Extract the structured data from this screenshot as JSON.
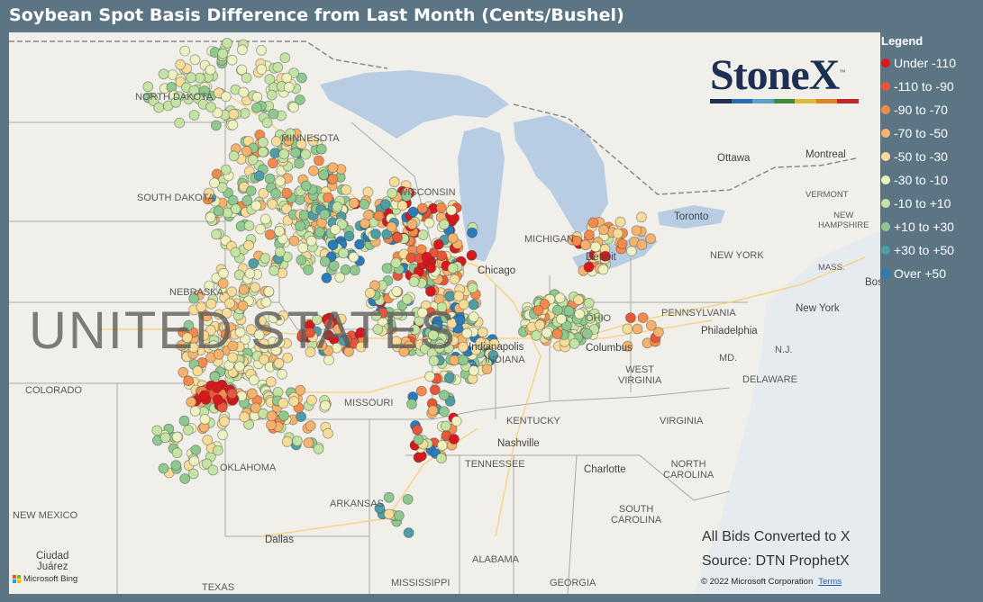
{
  "title": "Soybean Spot Basis Difference from Last Month (Cents/Bushel)",
  "legend": {
    "title": "Legend",
    "items": [
      {
        "label": "Under -110",
        "color": "#d7191c"
      },
      {
        "label": "-110 to -90",
        "color": "#e8563a"
      },
      {
        "label": "-90 to -70",
        "color": "#f28b4c"
      },
      {
        "label": "-70 to -50",
        "color": "#f5b36e"
      },
      {
        "label": "-50 to -30",
        "color": "#f7dc9a"
      },
      {
        "label": "-30 to -10",
        "color": "#eef2c0"
      },
      {
        "label": "-10 to +10",
        "color": "#c5e3a3"
      },
      {
        "label": "+10 to +30",
        "color": "#8fc98f"
      },
      {
        "label": "+30 to +50",
        "color": "#4f9ea5"
      },
      {
        "label": "Over +50",
        "color": "#2b7bb9"
      }
    ]
  },
  "logo": {
    "text": "StoneX",
    "tm": "™",
    "bar_colors": [
      "#1d2f55",
      "#2b6cb0",
      "#5aa0c8",
      "#3c8a3c",
      "#e2b83a",
      "#e0822a",
      "#c0272d"
    ]
  },
  "notes": {
    "line1": "All Bids Converted to X",
    "line2": "Source: DTN ProphetX"
  },
  "copyright": "© 2022 Microsoft Corporation",
  "terms_link": "Terms",
  "bing": "Microsoft Bing",
  "map_labels": {
    "north_dakota": "NORTH DAKOTA",
    "south_dakota": "SOUTH DAKOTA",
    "minnesota": "MINNESOTA",
    "wisconsin": "WISCONSIN",
    "nebraska": "NEBRASKA",
    "colorado": "COLORADO",
    "missouri": "MISSOURI",
    "michigan": "MICHIGAN",
    "ohio": "OHIO",
    "indiana": "INDIANA",
    "kentucky": "KENTUCKY",
    "tennessee": "TENNESSEE",
    "arkansas": "ARKANSAS",
    "oklahoma": "OKLAHOMA",
    "new_mexico": "NEW MEXICO",
    "texas": "TEXAS",
    "mississippi": "MISSISSIPPI",
    "alabama": "ALABAMA",
    "georgia": "GEORGIA",
    "west_virginia": "WEST\nVIRGINIA",
    "virginia": "VIRGINIA",
    "north_carolina": "NORTH\nCAROLINA",
    "south_carolina": "SOUTH\nCAROLINA",
    "pennsylvania": "PENNSYLVANIA",
    "new_york": "NEW YORK",
    "vermont": "VERMONT",
    "new_hampshire": "NEW\nHAMPSHIRE",
    "mass": "MASS.",
    "nj": "N.J.",
    "md": "MD.",
    "delaware": "DELAWARE",
    "united_states": "UNITED STATES",
    "chicago": "Chicago",
    "detroit": "Detroit",
    "toronto": "Toronto",
    "ottawa": "Ottawa",
    "montreal": "Montreal",
    "columbus": "Columbus",
    "indianapolis": "Indianapolis",
    "nashville": "Nashville",
    "charlotte": "Charlotte",
    "philadelphia": "Philadelphia",
    "new_york_city": "New York",
    "boston": "Bos",
    "dallas": "Dallas",
    "ciudad_juarez": "Ciudad\nJuárez"
  }
}
